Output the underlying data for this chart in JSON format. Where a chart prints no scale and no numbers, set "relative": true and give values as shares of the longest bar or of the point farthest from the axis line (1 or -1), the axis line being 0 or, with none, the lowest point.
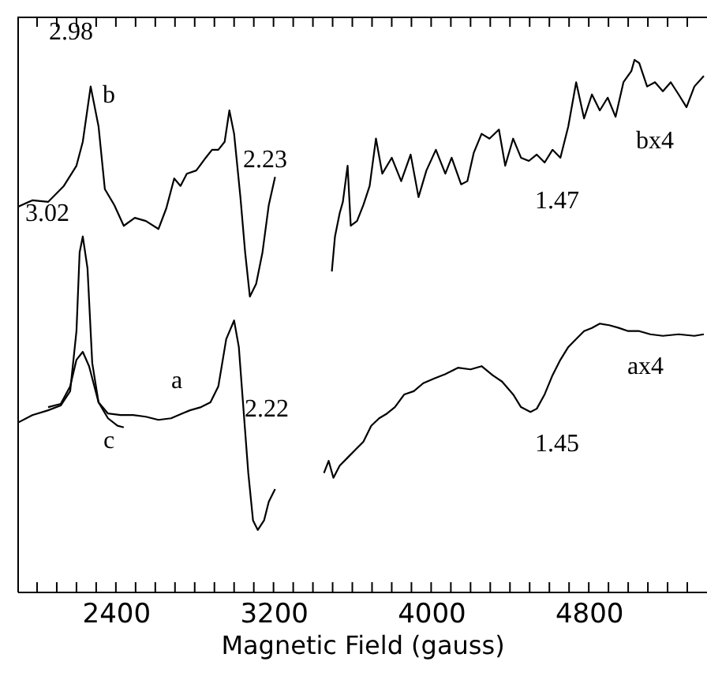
{
  "chart_data": {
    "type": "line",
    "xlabel": "Magnetic Field (gauss)",
    "relative": true,
    "grid": false,
    "xlim": [
      1900,
      5400
    ],
    "xticks": [
      {
        "value": 2000,
        "label": null
      },
      {
        "value": 2100,
        "label": null
      },
      {
        "value": 2200,
        "label": null
      },
      {
        "value": 2300,
        "label": null
      },
      2400,
      {
        "value": 2500,
        "label": null
      },
      {
        "value": 2600,
        "label": null
      },
      {
        "value": 2700,
        "label": null
      },
      {
        "value": 2800,
        "label": null
      },
      {
        "value": 2900,
        "label": null
      },
      {
        "value": 3000,
        "label": null
      },
      {
        "value": 3100,
        "label": null
      },
      3200,
      {
        "value": 3300,
        "label": null
      },
      {
        "value": 3400,
        "label": null
      },
      {
        "value": 3500,
        "label": null
      },
      {
        "value": 3600,
        "label": null
      },
      {
        "value": 3700,
        "label": null
      },
      {
        "value": 3800,
        "label": null
      },
      {
        "value": 3900,
        "label": null
      },
      4000,
      {
        "value": 4100,
        "label": null
      },
      {
        "value": 4200,
        "label": null
      },
      {
        "value": 4300,
        "label": null
      },
      {
        "value": 4400,
        "label": null
      },
      {
        "value": 4500,
        "label": null
      },
      {
        "value": 4600,
        "label": null
      },
      {
        "value": 4700,
        "label": null
      },
      4800,
      {
        "value": 4900,
        "label": null
      },
      {
        "value": 5000,
        "label": null
      },
      {
        "value": 5100,
        "label": null
      },
      {
        "value": 5200,
        "label": null
      },
      {
        "value": 5300,
        "label": null
      }
    ],
    "series": [
      {
        "color": "#000000",
        "x": [
          1904,
          1976,
          2056,
          2136,
          2200,
          2232,
          2272,
          2312,
          2344,
          2392,
          2440,
          2496,
          2552,
          2616,
          2656,
          2696,
          2728,
          2760,
          2808,
          2856,
          2888,
          2920,
          2952,
          2976,
          3000,
          3032,
          3056,
          3080,
          3112,
          3144,
          3176,
          3208
        ],
        "values": [
          0.724,
          0.736,
          0.733,
          0.763,
          0.801,
          0.846,
          0.95,
          0.875,
          0.757,
          0.727,
          0.688,
          0.703,
          0.697,
          0.682,
          0.721,
          0.777,
          0.763,
          0.786,
          0.792,
          0.816,
          0.831,
          0.831,
          0.846,
          0.905,
          0.861,
          0.742,
          0.638,
          0.555,
          0.579,
          0.638,
          0.727,
          0.78
        ]
      },
      {
        "color": "#000000",
        "x": [
          3496,
          3512,
          3536,
          3552,
          3576,
          3592,
          3624,
          3656,
          3688,
          3720,
          3752,
          3800,
          3848,
          3896,
          3936,
          3976,
          4024,
          4072,
          4104,
          4152,
          4184,
          4216,
          4256,
          4296,
          4344,
          4376,
          4416,
          4456,
          4496,
          4536,
          4576,
          4616,
          4656,
          4696,
          4736,
          4776,
          4816,
          4856,
          4896,
          4936,
          4976,
          5016,
          5032,
          5056,
          5096,
          5136,
          5176,
          5216,
          5256,
          5296,
          5336,
          5384
        ],
        "values": [
          0.602,
          0.668,
          0.712,
          0.733,
          0.801,
          0.688,
          0.697,
          0.727,
          0.763,
          0.852,
          0.786,
          0.816,
          0.772,
          0.822,
          0.742,
          0.792,
          0.831,
          0.786,
          0.816,
          0.766,
          0.772,
          0.825,
          0.861,
          0.852,
          0.869,
          0.801,
          0.852,
          0.816,
          0.81,
          0.822,
          0.807,
          0.831,
          0.816,
          0.875,
          0.958,
          0.89,
          0.935,
          0.905,
          0.929,
          0.893,
          0.958,
          0.979,
          1.0,
          0.994,
          0.95,
          0.958,
          0.941,
          0.958,
          0.935,
          0.911,
          0.95,
          0.97
        ]
      },
      {
        "color": "#000000",
        "x": [
          1904,
          1976,
          2056,
          2120,
          2168,
          2200,
          2216,
          2232,
          2256,
          2280,
          2312,
          2360,
          2424,
          2488,
          2552,
          2616,
          2680,
          2736,
          2776,
          2832,
          2880,
          2920,
          2960,
          3000,
          3024,
          3048,
          3072,
          3096,
          3120,
          3152,
          3176,
          3208
        ],
        "values": [
          0.318,
          0.332,
          0.341,
          0.35,
          0.377,
          0.49,
          0.638,
          0.668,
          0.608,
          0.43,
          0.356,
          0.335,
          0.332,
          0.332,
          0.329,
          0.323,
          0.326,
          0.335,
          0.341,
          0.347,
          0.356,
          0.386,
          0.475,
          0.51,
          0.46,
          0.341,
          0.223,
          0.134,
          0.116,
          0.134,
          0.169,
          0.193
        ]
      },
      {
        "color": "#000000",
        "x": [
          2056,
          2120,
          2168,
          2200,
          2232,
          2264,
          2312,
          2360,
          2408,
          2440
        ],
        "values": [
          0.347,
          0.353,
          0.386,
          0.436,
          0.451,
          0.424,
          0.356,
          0.326,
          0.312,
          0.309
        ]
      },
      {
        "color": "#000000",
        "x": [
          3456,
          3480,
          3504,
          3536,
          3576,
          3616,
          3656,
          3696,
          3736,
          3776,
          3816,
          3864,
          3912,
          3960,
          4016,
          4072,
          4136,
          4200,
          4256,
          4312,
          4360,
          4416,
          4456,
          4504,
          4536,
          4576,
          4616,
          4656,
          4696,
          4736,
          4776,
          4816,
          4856,
          4904,
          4952,
          5000,
          5056,
          5112,
          5176,
          5256,
          5336,
          5384
        ],
        "values": [
          0.223,
          0.246,
          0.214,
          0.237,
          0.252,
          0.267,
          0.282,
          0.312,
          0.326,
          0.335,
          0.347,
          0.371,
          0.377,
          0.392,
          0.401,
          0.409,
          0.421,
          0.418,
          0.424,
          0.407,
          0.395,
          0.371,
          0.347,
          0.338,
          0.344,
          0.371,
          0.407,
          0.436,
          0.46,
          0.475,
          0.49,
          0.496,
          0.504,
          0.501,
          0.496,
          0.49,
          0.49,
          0.484,
          0.481,
          0.484,
          0.481,
          0.484
        ]
      }
    ],
    "annotations": [
      "2.98",
      "b",
      "2.23",
      "3.02",
      "1.47",
      "bx4",
      "a",
      "2.22",
      "c",
      "ax4",
      "1.45"
    ]
  }
}
